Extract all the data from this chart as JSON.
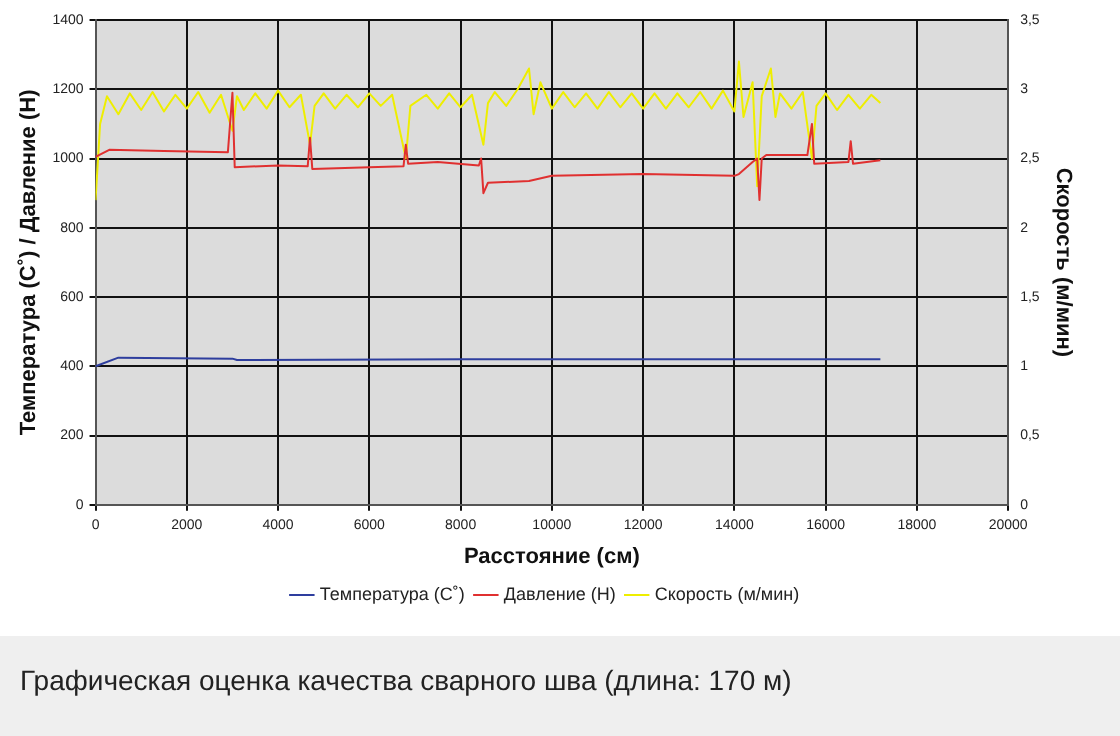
{
  "chart_data": {
    "type": "line",
    "xlabel": "Расстояние (см)",
    "ylabel": "Температура (С˚) / Давление (Н)",
    "y2label": "Скорость (м/мин)",
    "xlim": [
      0,
      20000
    ],
    "xticks": [
      0,
      2000,
      4000,
      6000,
      8000,
      10000,
      12000,
      14000,
      16000,
      18000,
      20000
    ],
    "ylim": [
      0,
      1400
    ],
    "yticks": [
      0,
      200,
      400,
      600,
      800,
      1000,
      1200,
      1400
    ],
    "y2lim": [
      0,
      3.5
    ],
    "y2ticks": [
      0,
      {
        "value": 0.5,
        "label": "0,5"
      },
      1,
      {
        "value": 1.5,
        "label": "1,5"
      },
      2,
      {
        "value": 2.5,
        "label": "2,5"
      },
      3,
      {
        "value": 3.5,
        "label": "3,5"
      }
    ],
    "grid": true,
    "legend": "bottom",
    "marker": "none",
    "line_style": "solid",
    "annotations": [
      "Графическая оценка качества сварного шва (длина: 170 м)"
    ],
    "series": [
      {
        "name": "Температура (С˚)",
        "color": "#2e3e9e",
        "x": [
          0,
          500,
          3000,
          3100,
          8000,
          17200
        ],
        "values": [
          400,
          425,
          422,
          418,
          420,
          420
        ]
      },
      {
        "name": "Давление (Н)",
        "color": "#e03030",
        "x": [
          0,
          300,
          1500,
          2900,
          3000,
          3050,
          4000,
          4650,
          4700,
          4750,
          6000,
          6750,
          6800,
          6850,
          7500,
          8400,
          8450,
          8500,
          8600,
          9500,
          10000,
          12000,
          14000,
          14100,
          14400,
          14500,
          14550,
          14600,
          14700,
          15600,
          15700,
          15750,
          16500,
          16550,
          16600,
          17200
        ],
        "values": [
          1005,
          1025,
          1022,
          1018,
          1190,
          975,
          980,
          978,
          1060,
          970,
          975,
          978,
          1040,
          985,
          990,
          980,
          1000,
          900,
          930,
          935,
          950,
          955,
          950,
          955,
          990,
          1000,
          880,
          1000,
          1010,
          1010,
          1100,
          985,
          990,
          1050,
          985,
          995
        ]
      },
      {
        "name": "Скорость (м/мин)",
        "color": "#eeee00",
        "axis": "y2",
        "x": [
          0,
          100,
          250,
          500,
          750,
          1000,
          1250,
          1500,
          1750,
          2000,
          2250,
          2500,
          2750,
          3000,
          3100,
          3250,
          3500,
          3750,
          4000,
          4250,
          4500,
          4700,
          4800,
          5000,
          5250,
          5500,
          5750,
          6000,
          6250,
          6500,
          6800,
          6900,
          7250,
          7500,
          7750,
          8000,
          8250,
          8500,
          8600,
          8750,
          9000,
          9250,
          9500,
          9600,
          9750,
          10000,
          10250,
          10500,
          10750,
          11000,
          11250,
          11500,
          11750,
          12000,
          12250,
          12500,
          12750,
          13000,
          13250,
          13500,
          13750,
          14000,
          14100,
          14200,
          14400,
          14500,
          14600,
          14800,
          14900,
          15000,
          15250,
          15500,
          15700,
          15800,
          16000,
          16250,
          16500,
          16750,
          17000,
          17200
        ],
        "values": [
          2.2,
          2.75,
          2.95,
          2.82,
          2.97,
          2.85,
          2.98,
          2.84,
          2.96,
          2.86,
          2.98,
          2.83,
          2.96,
          2.7,
          2.95,
          2.85,
          2.97,
          2.86,
          2.99,
          2.87,
          2.96,
          2.6,
          2.88,
          2.97,
          2.86,
          2.96,
          2.87,
          2.97,
          2.88,
          2.96,
          2.5,
          2.88,
          2.96,
          2.86,
          2.97,
          2.87,
          2.96,
          2.6,
          2.9,
          2.98,
          2.88,
          3.0,
          3.15,
          2.82,
          3.05,
          2.86,
          2.98,
          2.87,
          2.97,
          2.86,
          2.98,
          2.87,
          2.97,
          2.86,
          2.97,
          2.86,
          2.97,
          2.87,
          2.98,
          2.86,
          2.99,
          2.84,
          3.2,
          2.8,
          3.05,
          2.3,
          2.95,
          3.15,
          2.8,
          2.97,
          2.86,
          2.98,
          2.5,
          2.88,
          2.97,
          2.85,
          2.96,
          2.86,
          2.96,
          2.9
        ]
      }
    ]
  }
}
